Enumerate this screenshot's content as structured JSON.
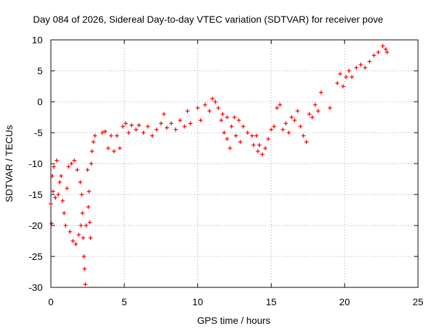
{
  "chart_data": {
    "type": "scatter",
    "title": "Day 084 of 2026, Sidereal Day-to-day VTEC variation (SDTVAR) for receiver pove",
    "xlabel": "GPS time / hours",
    "ylabel": "SDTVAR / TECUs",
    "xlim": [
      0,
      25
    ],
    "ylim": [
      -30,
      10
    ],
    "xticks": [
      0,
      5,
      10,
      15,
      20,
      25
    ],
    "yticks": [
      -30,
      -25,
      -20,
      -15,
      -10,
      -5,
      0,
      5,
      10
    ],
    "grid": true,
    "marker": "+",
    "color": "#ff0000",
    "series": [
      {
        "name": "SDTVAR",
        "points": [
          [
            0.0,
            -16.5
          ],
          [
            0.05,
            -19.7
          ],
          [
            0.1,
            -12.0
          ],
          [
            0.15,
            -14.5
          ],
          [
            0.2,
            -10.5
          ],
          [
            0.3,
            -15.5
          ],
          [
            0.4,
            -9.5
          ],
          [
            0.5,
            -15.0
          ],
          [
            0.6,
            -13.0
          ],
          [
            0.7,
            -12.0
          ],
          [
            0.8,
            -16.0
          ],
          [
            0.9,
            -18.0
          ],
          [
            1.0,
            -20.0
          ],
          [
            1.1,
            -14.0
          ],
          [
            1.2,
            -10.5
          ],
          [
            1.3,
            -21.0
          ],
          [
            1.4,
            -10.0
          ],
          [
            1.5,
            -22.5
          ],
          [
            1.6,
            -9.5
          ],
          [
            1.7,
            -23.0
          ],
          [
            1.8,
            -11.0
          ],
          [
            1.9,
            -21.5
          ],
          [
            2.0,
            -13.0
          ],
          [
            2.05,
            -20.0
          ],
          [
            2.1,
            -15.0
          ],
          [
            2.15,
            -18.0
          ],
          [
            2.2,
            -22.0
          ],
          [
            2.25,
            -25.0
          ],
          [
            2.3,
            -27.0
          ],
          [
            2.35,
            -29.5
          ],
          [
            2.4,
            -20.0
          ],
          [
            2.5,
            -11.0
          ],
          [
            2.55,
            -17.0
          ],
          [
            2.6,
            -14.5
          ],
          [
            2.65,
            -19.5
          ],
          [
            2.7,
            -22.0
          ],
          [
            2.75,
            -10.0
          ],
          [
            2.8,
            -8.0
          ],
          [
            2.9,
            -6.5
          ],
          [
            3.0,
            -5.5
          ],
          [
            3.5,
            -5.0
          ],
          [
            3.7,
            -4.8
          ],
          [
            3.9,
            -7.5
          ],
          [
            4.1,
            -5.5
          ],
          [
            4.3,
            -8.0
          ],
          [
            4.5,
            -5.5
          ],
          [
            4.7,
            -7.5
          ],
          [
            4.9,
            -4.0
          ],
          [
            5.1,
            -3.5
          ],
          [
            5.3,
            -5.0
          ],
          [
            5.5,
            -3.8
          ],
          [
            5.8,
            -4.5
          ],
          [
            6.0,
            -3.8
          ],
          [
            6.3,
            -5.0
          ],
          [
            6.6,
            -4.0
          ],
          [
            6.9,
            -5.5
          ],
          [
            7.2,
            -4.5
          ],
          [
            7.5,
            -3.5
          ],
          [
            7.7,
            -2.0
          ],
          [
            7.9,
            -4.2
          ],
          [
            8.2,
            -3.5
          ],
          [
            8.5,
            -4.5
          ],
          [
            8.8,
            -3.0
          ],
          [
            9.1,
            -4.0
          ],
          [
            9.3,
            -1.5
          ],
          [
            9.5,
            -3.5
          ],
          [
            10.0,
            -1.0
          ],
          [
            10.2,
            -3.0
          ],
          [
            10.5,
            -0.5
          ],
          [
            10.8,
            -1.5
          ],
          [
            11.0,
            0.5
          ],
          [
            11.2,
            0.0
          ],
          [
            11.4,
            -1.0
          ],
          [
            11.6,
            -3.0
          ],
          [
            11.8,
            -5.0
          ],
          [
            12.0,
            -6.0
          ],
          [
            12.2,
            -7.5
          ],
          [
            11.7,
            -2.0
          ],
          [
            12.0,
            -2.5
          ],
          [
            12.3,
            -4.0
          ],
          [
            12.6,
            -5.5
          ],
          [
            12.9,
            -6.5
          ],
          [
            12.5,
            -2.5
          ],
          [
            12.8,
            -3.0
          ],
          [
            13.1,
            -4.0
          ],
          [
            13.4,
            -5.0
          ],
          [
            13.7,
            -5.5
          ],
          [
            14.0,
            -5.5
          ],
          [
            14.2,
            -7.0
          ],
          [
            14.4,
            -8.5
          ],
          [
            14.6,
            -7.5
          ],
          [
            14.8,
            -6.0
          ],
          [
            13.8,
            -7.0
          ],
          [
            14.1,
            -8.0
          ],
          [
            15.0,
            -4.5
          ],
          [
            15.2,
            -4.0
          ],
          [
            15.4,
            -1.0
          ],
          [
            15.6,
            -0.5
          ],
          [
            15.8,
            -4.5
          ],
          [
            16.0,
            -3.5
          ],
          [
            16.2,
            -5.0
          ],
          [
            16.4,
            -2.5
          ],
          [
            16.6,
            -3.0
          ],
          [
            16.8,
            -1.5
          ],
          [
            17.0,
            -4.0
          ],
          [
            17.2,
            -5.5
          ],
          [
            17.4,
            -6.5
          ],
          [
            17.6,
            -2.0
          ],
          [
            17.8,
            -2.5
          ],
          [
            18.0,
            -0.5
          ],
          [
            18.2,
            -1.5
          ],
          [
            18.4,
            1.5
          ],
          [
            19.0,
            -1.0
          ],
          [
            19.5,
            3.0
          ],
          [
            19.7,
            4.5
          ],
          [
            19.9,
            2.5
          ],
          [
            20.1,
            4.0
          ],
          [
            20.3,
            5.0
          ],
          [
            20.5,
            4.0
          ],
          [
            20.8,
            5.5
          ],
          [
            21.1,
            6.0
          ],
          [
            21.4,
            5.5
          ],
          [
            21.7,
            6.5
          ],
          [
            22.0,
            7.5
          ],
          [
            22.3,
            8.0
          ],
          [
            22.6,
            9.0
          ],
          [
            22.8,
            8.5
          ],
          [
            22.9,
            8.0
          ]
        ]
      }
    ]
  }
}
